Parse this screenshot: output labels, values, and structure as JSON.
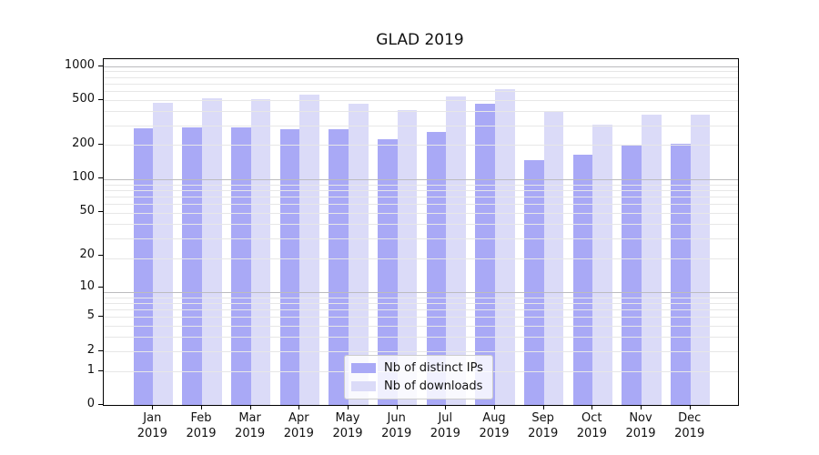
{
  "chart_data": {
    "type": "bar",
    "title": "GLAD 2019",
    "categories": [
      "Jan",
      "Feb",
      "Mar",
      "Apr",
      "May",
      "Jun",
      "Jul",
      "Aug",
      "Sep",
      "Oct",
      "Nov",
      "Dec"
    ],
    "year_label": "2019",
    "series": [
      {
        "name": "Nb of distinct IPs",
        "color": "#a9a9f6",
        "values": [
          280,
          285,
          285,
          278,
          275,
          225,
          262,
          465,
          145,
          165,
          200,
          205
        ]
      },
      {
        "name": "Nb of downloads",
        "color": "#dbdbf8",
        "values": [
          475,
          520,
          505,
          555,
          460,
          405,
          540,
          620,
          400,
          300,
          370,
          370
        ]
      }
    ],
    "xlabel": "",
    "ylabel": "",
    "yscale": "log10(value+1)",
    "y_ticks": [
      0,
      1,
      2,
      5,
      10,
      20,
      50,
      100,
      200,
      500,
      1000
    ],
    "ylim": [
      0,
      1170
    ],
    "grid": "horizontal log minor+major, drawn over bars",
    "legend_position": "lower center",
    "colors": {
      "grid_minor": "#e7e7e7",
      "grid_major": "#bcbcbe",
      "spine": "#000000",
      "background": "#ffffff"
    }
  }
}
